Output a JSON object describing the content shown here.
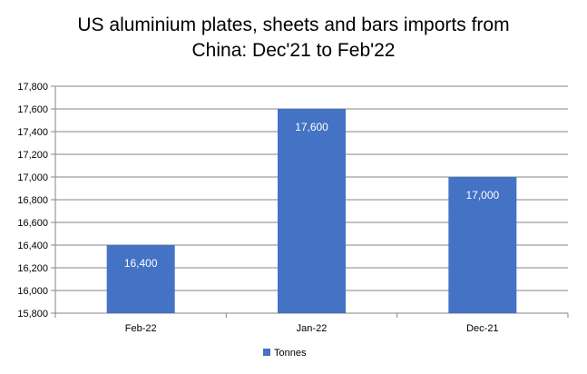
{
  "chart_data": {
    "type": "bar",
    "title_line1": "US aluminium plates, sheets and bars imports from",
    "title_line2": "China: Dec'21 to Feb'22",
    "categories": [
      "Feb-22",
      "Jan-22",
      "Dec-21"
    ],
    "series": [
      {
        "name": "Tonnes",
        "values": [
          16400,
          17600,
          17000
        ],
        "color": "#4472C4"
      }
    ],
    "data_labels": [
      "16,400",
      "17,600",
      "17,000"
    ],
    "ylim": [
      15800,
      17800
    ],
    "y_ticks": [
      15800,
      16000,
      16200,
      16400,
      16600,
      16800,
      17000,
      17200,
      17400,
      17600,
      17800
    ],
    "y_tick_labels": [
      "15,800",
      "16,000",
      "16,200",
      "16,400",
      "16,600",
      "16,800",
      "17,000",
      "17,200",
      "17,400",
      "17,600",
      "17,800"
    ],
    "grid": true,
    "legend_position": "bottom"
  }
}
